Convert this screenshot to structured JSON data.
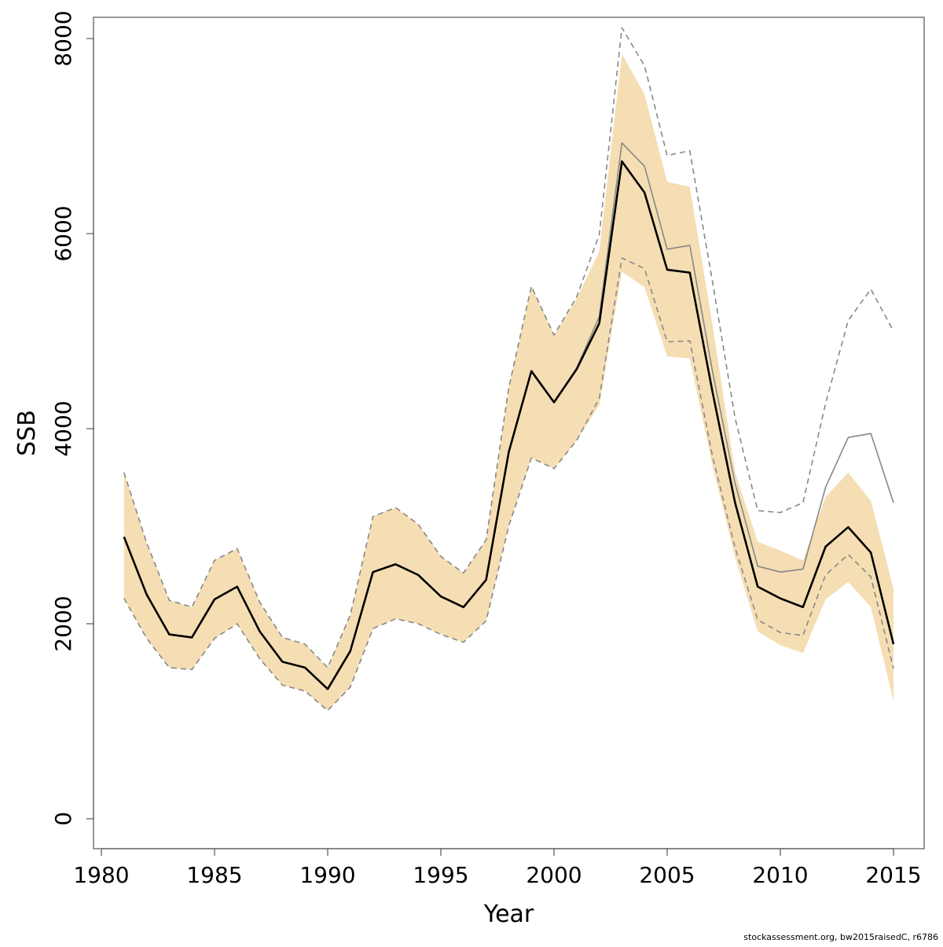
{
  "chart_data": {
    "type": "area",
    "title": "",
    "xlabel": "Year",
    "ylabel": "SSB",
    "xlim": [
      1980,
      2015
    ],
    "ylim": [
      0,
      8000
    ],
    "x_ticks": [
      1980,
      1985,
      1990,
      1995,
      2000,
      2005,
      2010,
      2015
    ],
    "y_ticks": [
      0,
      2000,
      4000,
      6000,
      8000
    ],
    "grid": false,
    "legend": "none",
    "x": [
      1981,
      1982,
      1983,
      1984,
      1985,
      1986,
      1987,
      1988,
      1989,
      1990,
      1991,
      1992,
      1993,
      1994,
      1995,
      1996,
      1997,
      1998,
      1999,
      2000,
      2001,
      2002,
      2003,
      2004,
      2005,
      2006,
      2007,
      2008,
      2009,
      2010,
      2011,
      2012,
      2013,
      2014,
      2015
    ],
    "series": [
      {
        "role": "band",
        "color": "#f5deb3",
        "lower": [
          2260,
          1850,
          1550,
          1530,
          1850,
          2000,
          1640,
          1370,
          1310,
          1110,
          1350,
          1950,
          2050,
          2000,
          1890,
          1810,
          2030,
          3000,
          3700,
          3590,
          3880,
          4240,
          5610,
          5450,
          4740,
          4720,
          3620,
          2680,
          1920,
          1780,
          1700,
          2250,
          2430,
          2170,
          1210
        ],
        "upper": [
          3550,
          2830,
          2240,
          2170,
          2650,
          2770,
          2220,
          1860,
          1790,
          1550,
          2090,
          3100,
          3190,
          3020,
          2690,
          2520,
          2860,
          4420,
          5460,
          4960,
          5330,
          5820,
          7840,
          7430,
          6530,
          6480,
          5070,
          3550,
          2840,
          2750,
          2650,
          3300,
          3550,
          3260,
          2360
        ]
      },
      {
        "role": "estimate",
        "color": "#000000",
        "values": [
          2890,
          2300,
          1890,
          1860,
          2250,
          2380,
          1920,
          1610,
          1550,
          1330,
          1720,
          2530,
          2610,
          2500,
          2280,
          2170,
          2450,
          3760,
          4590,
          4270,
          4610,
          5080,
          6740,
          6420,
          5630,
          5600,
          4380,
          3240,
          2380,
          2260,
          2170,
          2790,
          2990,
          2730,
          1790
        ]
      },
      {
        "role": "alternate",
        "color": "#888888",
        "values": [
          2890,
          2300,
          1890,
          1860,
          2250,
          2380,
          1920,
          1610,
          1550,
          1330,
          1720,
          2530,
          2610,
          2500,
          2280,
          2170,
          2450,
          3760,
          4590,
          4270,
          4620,
          5150,
          6930,
          6690,
          5840,
          5880,
          4590,
          3440,
          2590,
          2530,
          2560,
          3400,
          3910,
          3950,
          3240
        ]
      },
      {
        "role": "alternate-upper",
        "color": "#888888",
        "dashed": true,
        "values": [
          3550,
          2830,
          2240,
          2170,
          2650,
          2770,
          2220,
          1860,
          1790,
          1550,
          2090,
          3100,
          3190,
          3020,
          2690,
          2520,
          2860,
          4420,
          5460,
          4960,
          5350,
          5990,
          8110,
          7720,
          6800,
          6850,
          5510,
          4110,
          3160,
          3140,
          3240,
          4260,
          5110,
          5430,
          5000
        ]
      },
      {
        "role": "alternate-lower",
        "color": "#888888",
        "dashed": true,
        "values": [
          2260,
          1850,
          1550,
          1530,
          1850,
          2000,
          1640,
          1370,
          1310,
          1110,
          1350,
          1950,
          2050,
          2000,
          1890,
          1810,
          2030,
          3000,
          3700,
          3590,
          3880,
          4310,
          5750,
          5640,
          4890,
          4900,
          3720,
          2780,
          2040,
          1910,
          1880,
          2500,
          2710,
          2480,
          1540
        ]
      }
    ],
    "footnote": "stockassessment.org, bw2015raisedC, r6786"
  }
}
